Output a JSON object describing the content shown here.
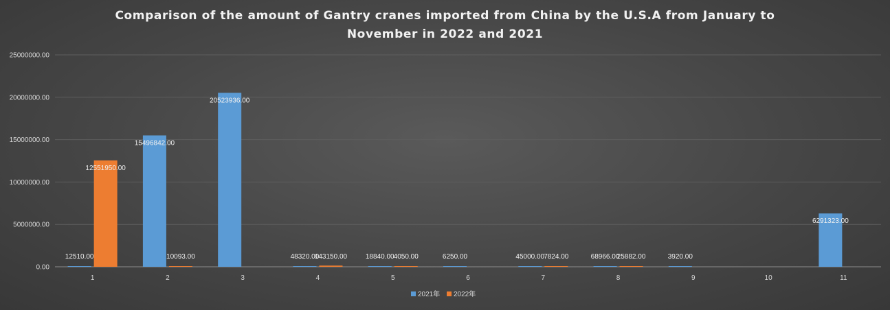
{
  "chart_data": {
    "type": "bar",
    "title_lines": [
      "Comparison of the amount of Gantry cranes imported from China by the U.S.A from January to",
      "November in 2022 and 2021"
    ],
    "categories": [
      "1",
      "2",
      "3",
      "4",
      "5",
      "6",
      "7",
      "8",
      "9",
      "10",
      "11"
    ],
    "series": [
      {
        "name": "2021年",
        "color": "#5b9bd5",
        "values": [
          12510,
          15496842,
          20523936,
          48320,
          18840,
          6250,
          45000,
          68966,
          3920,
          null,
          6291323
        ],
        "labels": [
          "12510.00",
          "15496842.00",
          "20523936.00",
          "48320.00",
          "18840.00",
          "6250.00",
          "45000.00",
          "68966.00",
          "3920.00",
          "",
          "6291323.00"
        ]
      },
      {
        "name": "2022年",
        "color": "#ed7d31",
        "values": [
          12551950,
          10093,
          null,
          143150,
          4050,
          null,
          7824,
          25882,
          null,
          null,
          null
        ],
        "labels": [
          "12551950.00",
          "10093.00",
          "",
          "143150.00",
          "4050.00",
          "",
          "7824.00",
          "25882.00",
          "",
          "",
          ""
        ]
      }
    ],
    "yticks": [
      "0.00",
      "5000000.00",
      "10000000.00",
      "15000000.00",
      "20000000.00",
      "25000000.00"
    ],
    "ylim": [
      0,
      25000000
    ],
    "grid": true,
    "legend": "bottom"
  }
}
